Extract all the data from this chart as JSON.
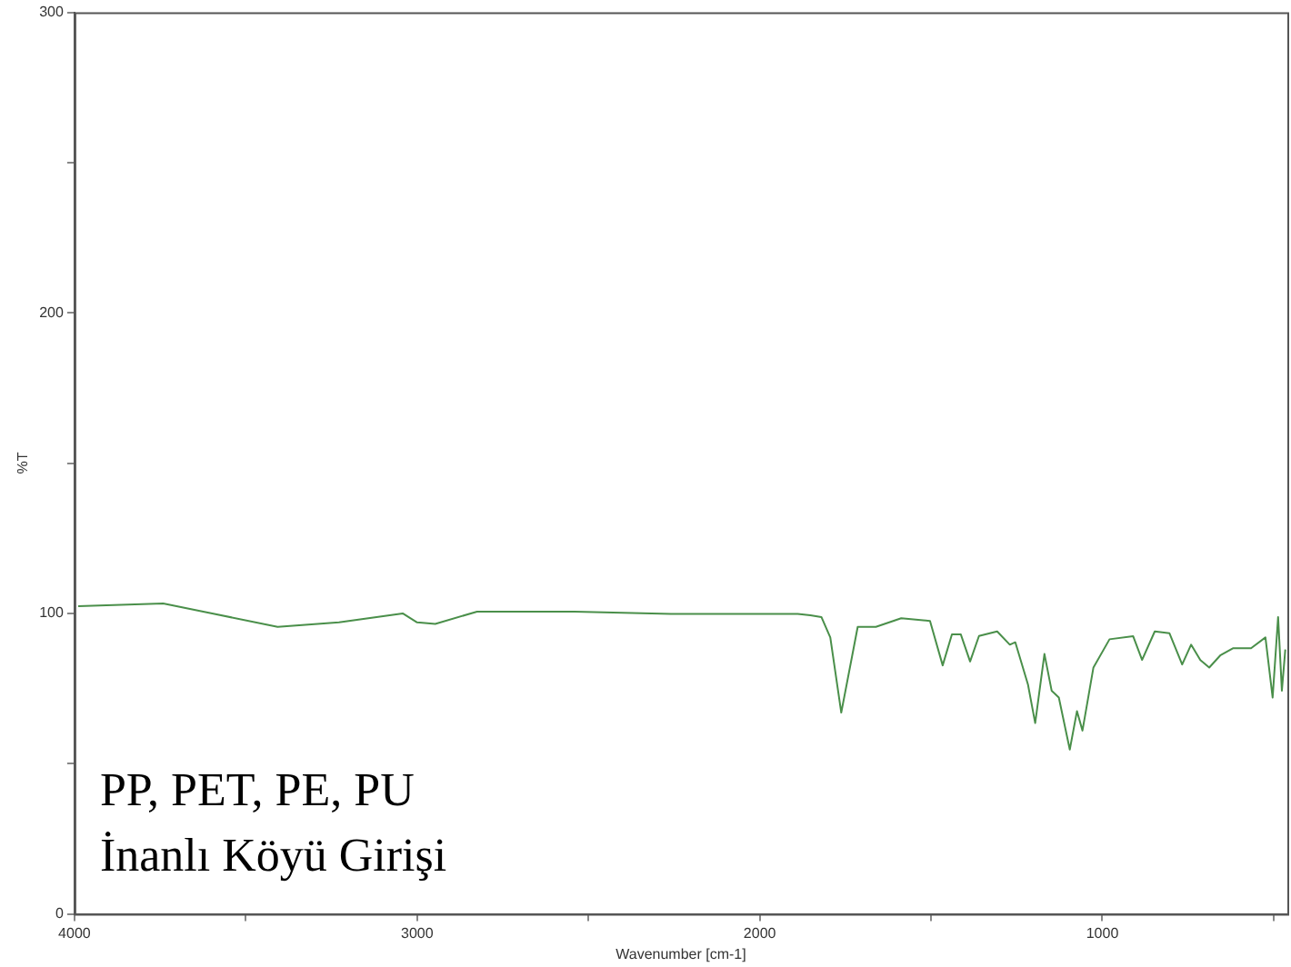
{
  "chart_data": {
    "type": "line",
    "xlabel": "Wavenumber [cm-1]",
    "ylabel": "%T",
    "annotations": [
      "PP, PET, PE, PU",
      "İnanlı Köyü Girişi"
    ],
    "x": [
      3989,
      3741,
      3598,
      3407,
      3228,
      3042,
      3000,
      2947,
      2825,
      2540,
      2259,
      1889,
      1852,
      1820,
      1794,
      1762,
      1730,
      1714,
      1661,
      1587,
      1503,
      1466,
      1439,
      1413,
      1386,
      1360,
      1307,
      1270,
      1254,
      1217,
      1196,
      1169,
      1148,
      1127,
      1095,
      1074,
      1058,
      1026,
      979,
      910,
      884,
      847,
      804,
      767,
      741,
      714,
      688,
      656,
      619,
      566,
      524,
      503,
      487,
      476,
      466
    ],
    "series": [
      {
        "color": "#4a8f4a",
        "values": [
          102.4,
          103.3,
          100,
          95.5,
          97,
          100,
          97,
          96.5,
          100.6,
          100.6,
          99.8,
          99.8,
          99.4,
          98.8,
          92,
          67,
          86,
          95.5,
          95.5,
          98.4,
          97.5,
          82.7,
          93,
          93,
          84,
          92.5,
          94,
          89.6,
          90.4,
          76.3,
          63.5,
          86.5,
          74.3,
          72,
          54.7,
          67.5,
          61,
          82,
          91.4,
          92.4,
          84.5,
          94,
          93.4,
          83,
          89.6,
          84.5,
          82,
          86,
          88.4,
          88.4,
          92,
          72,
          98.8,
          74.3,
          88
        ]
      }
    ],
    "xlim": [
      4000,
      460
    ],
    "xticks": [
      4000,
      {
        "value": 3500,
        "label": null
      },
      3000,
      {
        "value": 2500,
        "label": null
      },
      2000,
      {
        "value": 1500,
        "label": null
      },
      1000,
      {
        "value": 500,
        "label": null
      }
    ],
    "ylim": [
      0,
      300
    ],
    "yticks": [
      0,
      {
        "value": 50,
        "label": null
      },
      100,
      {
        "value": 150,
        "label": null
      },
      200,
      {
        "value": 250,
        "label": null
      },
      300
    ],
    "grid": false,
    "legend": false,
    "marker": "none",
    "line_style": "solid"
  }
}
